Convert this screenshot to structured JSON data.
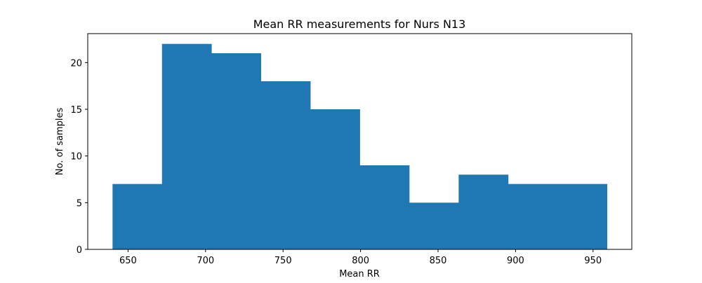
{
  "chart_data": {
    "type": "bar",
    "title": "Mean RR measurements for Nurs N13",
    "xlabel": "Mean RR",
    "ylabel": "No. of samples",
    "bin_edges": [
      640,
      671.9,
      703.8,
      735.7,
      767.6,
      799.5,
      831.4,
      863.3,
      895.2,
      927.1,
      959
    ],
    "values": [
      7,
      22,
      21,
      18,
      15,
      9,
      5,
      8,
      7,
      7
    ],
    "xlim": [
      624,
      975
    ],
    "ylim": [
      0,
      23.1
    ],
    "x_ticks": [
      650,
      700,
      750,
      800,
      850,
      900,
      950
    ],
    "y_ticks": [
      0,
      5,
      10,
      15,
      20
    ],
    "bar_color": "#1f77b4",
    "grid": false,
    "legend": null
  }
}
